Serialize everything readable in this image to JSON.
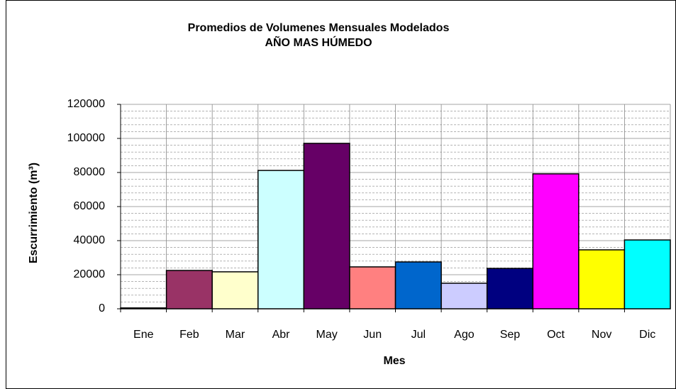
{
  "chart_data": {
    "type": "bar",
    "title": "Promedios de Volumenes Mensuales Modelados",
    "subtitle": "AÑO MAS HÚMEDO",
    "x_label": "Mes",
    "y_label": "Escurrimiento (m³)",
    "categories": [
      "Ene",
      "Feb",
      "Mar",
      "Abr",
      "May",
      "Jun",
      "Jul",
      "Ago",
      "Sep",
      "Oct",
      "Nov",
      "Dic"
    ],
    "values": [
      500,
      22500,
      21700,
      81200,
      97100,
      24600,
      27500,
      15000,
      23700,
      79200,
      34600,
      40400
    ],
    "colors": [
      "#9999ff",
      "#993366",
      "#ffffcc",
      "#ccffff",
      "#660066",
      "#ff8080",
      "#0066cc",
      "#ccccff",
      "#000080",
      "#ff00ff",
      "#ffff00",
      "#00ffff"
    ],
    "ylim": [
      0,
      120000
    ],
    "yticks": [
      0,
      20000,
      40000,
      60000,
      80000,
      100000,
      120000
    ],
    "grid": true,
    "minor_grid": true
  }
}
